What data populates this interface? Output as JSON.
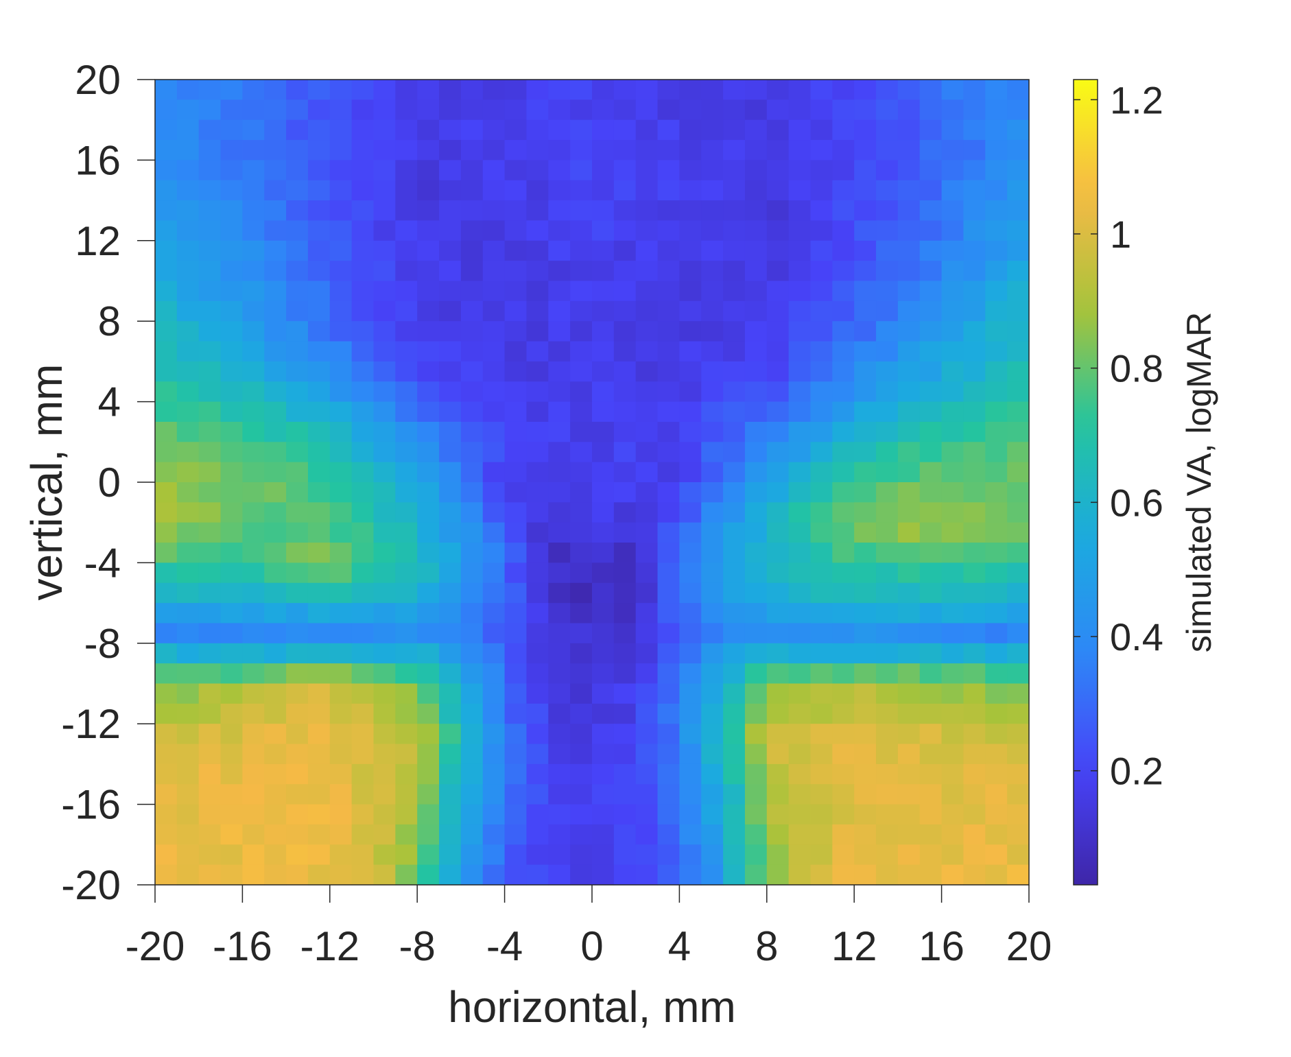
{
  "chart_data": {
    "type": "heatmap",
    "title": "",
    "xlabel": "horizontal, mm",
    "ylabel": "vertical, mm",
    "colorbar_label": "simulated VA, logMAR",
    "colormap": "parula",
    "colormap_stops": [
      "#3e26a8",
      "#4743f8",
      "#2e87f7",
      "#1caadf",
      "#23c4a0",
      "#a7c33a",
      "#f5b946",
      "#f9fb15"
    ],
    "xlim": [
      -20,
      20
    ],
    "ylim": [
      -20,
      20
    ],
    "clim": [
      0.03,
      1.23
    ],
    "x_ticks": [
      "-20",
      "-16",
      "-12",
      "-8",
      "-4",
      "0",
      "4",
      "8",
      "12",
      "16",
      "20"
    ],
    "y_ticks": [
      "20",
      "16",
      "12",
      "8",
      "4",
      "0",
      "-4",
      "-8",
      "-12",
      "-16",
      "-20"
    ],
    "colorbar_ticks": [
      "1.2",
      "1",
      "0.8",
      "0.6",
      "0.4",
      "0.2"
    ],
    "grid_rows": 40,
    "grid_cols": 40,
    "cell_size_mm": 1,
    "y_rows": [
      {
        "y": 20,
        "profile": [
          [
            -20,
            0.38
          ],
          [
            -16,
            0.32
          ],
          [
            -12,
            0.25
          ],
          [
            -8,
            0.16
          ],
          [
            -4,
            0.16
          ],
          [
            0,
            0.2
          ],
          [
            4,
            0.16
          ],
          [
            8,
            0.15
          ],
          [
            12,
            0.22
          ],
          [
            16,
            0.32
          ],
          [
            20,
            0.38
          ]
        ]
      },
      {
        "y": 17,
        "profile": [
          [
            -20,
            0.4
          ],
          [
            -16,
            0.33
          ],
          [
            -12,
            0.25
          ],
          [
            -8,
            0.16
          ],
          [
            -4,
            0.18
          ],
          [
            0,
            0.2
          ],
          [
            4,
            0.18
          ],
          [
            8,
            0.15
          ],
          [
            12,
            0.2
          ],
          [
            16,
            0.3
          ],
          [
            20,
            0.4
          ]
        ]
      },
      {
        "y": 14,
        "profile": [
          [
            -20,
            0.46
          ],
          [
            -16,
            0.36
          ],
          [
            -12,
            0.24
          ],
          [
            -8,
            0.15
          ],
          [
            -4,
            0.16
          ],
          [
            0,
            0.2
          ],
          [
            4,
            0.18
          ],
          [
            8,
            0.14
          ],
          [
            12,
            0.22
          ],
          [
            16,
            0.32
          ],
          [
            20,
            0.48
          ]
        ]
      },
      {
        "y": 11,
        "profile": [
          [
            -20,
            0.5
          ],
          [
            -16,
            0.42
          ],
          [
            -12,
            0.28
          ],
          [
            -8,
            0.17
          ],
          [
            -4,
            0.16
          ],
          [
            0,
            0.18
          ],
          [
            4,
            0.16
          ],
          [
            8,
            0.16
          ],
          [
            12,
            0.24
          ],
          [
            16,
            0.36
          ],
          [
            20,
            0.52
          ]
        ]
      },
      {
        "y": 8,
        "profile": [
          [
            -20,
            0.62
          ],
          [
            -16,
            0.48
          ],
          [
            -12,
            0.3
          ],
          [
            -8,
            0.18
          ],
          [
            -4,
            0.16
          ],
          [
            0,
            0.18
          ],
          [
            4,
            0.16
          ],
          [
            8,
            0.16
          ],
          [
            12,
            0.28
          ],
          [
            16,
            0.46
          ],
          [
            20,
            0.62
          ]
        ]
      },
      {
        "y": 5,
        "profile": [
          [
            -20,
            0.7
          ],
          [
            -16,
            0.6
          ],
          [
            -12,
            0.44
          ],
          [
            -8,
            0.22
          ],
          [
            -4,
            0.16
          ],
          [
            0,
            0.17
          ],
          [
            4,
            0.17
          ],
          [
            8,
            0.2
          ],
          [
            12,
            0.4
          ],
          [
            16,
            0.56
          ],
          [
            20,
            0.68
          ]
        ]
      },
      {
        "y": 2,
        "profile": [
          [
            -20,
            0.8
          ],
          [
            -16,
            0.78
          ],
          [
            -12,
            0.66
          ],
          [
            -8,
            0.4
          ],
          [
            -4,
            0.2
          ],
          [
            0,
            0.18
          ],
          [
            4,
            0.2
          ],
          [
            8,
            0.38
          ],
          [
            12,
            0.62
          ],
          [
            16,
            0.74
          ],
          [
            20,
            0.8
          ]
        ]
      },
      {
        "y": 0,
        "profile": [
          [
            -20,
            0.86
          ],
          [
            -16,
            0.84
          ],
          [
            -12,
            0.74
          ],
          [
            -8,
            0.52
          ],
          [
            -4,
            0.18
          ],
          [
            0,
            0.2
          ],
          [
            4,
            0.18
          ],
          [
            8,
            0.5
          ],
          [
            12,
            0.74
          ],
          [
            16,
            0.82
          ],
          [
            20,
            0.8
          ]
        ]
      },
      {
        "y": -2,
        "profile": [
          [
            -20,
            0.88
          ],
          [
            -16,
            0.8
          ],
          [
            -12,
            0.76
          ],
          [
            -8,
            0.6
          ],
          [
            -6,
            0.44
          ],
          [
            -4,
            0.26
          ],
          [
            -2,
            0.1
          ],
          [
            0,
            0.16
          ],
          [
            2,
            0.12
          ],
          [
            4,
            0.26
          ],
          [
            6,
            0.44
          ],
          [
            8,
            0.6
          ],
          [
            12,
            0.86
          ],
          [
            16,
            0.9
          ],
          [
            20,
            0.8
          ]
        ]
      },
      {
        "y": -4,
        "profile": [
          [
            -20,
            0.76
          ],
          [
            -16,
            0.72
          ],
          [
            -12,
            0.86
          ],
          [
            -8,
            0.66
          ],
          [
            -6,
            0.5
          ],
          [
            -4,
            0.3
          ],
          [
            -2,
            0.1
          ],
          [
            0,
            0.08
          ],
          [
            2,
            0.1
          ],
          [
            4,
            0.3
          ],
          [
            6,
            0.5
          ],
          [
            8,
            0.62
          ],
          [
            12,
            0.72
          ],
          [
            16,
            0.74
          ],
          [
            20,
            0.72
          ]
        ]
      },
      {
        "y": -6,
        "profile": [
          [
            -20,
            0.58
          ],
          [
            -16,
            0.56
          ],
          [
            -12,
            0.6
          ],
          [
            -8,
            0.56
          ],
          [
            -6,
            0.44
          ],
          [
            -4,
            0.3
          ],
          [
            -2,
            0.1
          ],
          [
            0,
            0.08
          ],
          [
            2,
            0.1
          ],
          [
            4,
            0.3
          ],
          [
            6,
            0.44
          ],
          [
            8,
            0.56
          ],
          [
            12,
            0.62
          ],
          [
            16,
            0.6
          ],
          [
            20,
            0.56
          ]
        ]
      },
      {
        "y": -7.5,
        "profile": [
          [
            -20,
            0.38
          ],
          [
            -16,
            0.36
          ],
          [
            -12,
            0.4
          ],
          [
            -8,
            0.42
          ],
          [
            -4,
            0.28
          ],
          [
            -2,
            0.12
          ],
          [
            0,
            0.12
          ],
          [
            2,
            0.14
          ],
          [
            4,
            0.28
          ],
          [
            8,
            0.42
          ],
          [
            12,
            0.42
          ],
          [
            16,
            0.4
          ],
          [
            20,
            0.36
          ]
        ]
      },
      {
        "y": -8.5,
        "profile": [
          [
            -20,
            0.58
          ],
          [
            -16,
            0.56
          ],
          [
            -12,
            0.58
          ],
          [
            -8,
            0.58
          ],
          [
            -6,
            0.46
          ],
          [
            -4,
            0.3
          ],
          [
            -2,
            0.12
          ],
          [
            0,
            0.1
          ],
          [
            2,
            0.14
          ],
          [
            4,
            0.3
          ],
          [
            6,
            0.46
          ],
          [
            8,
            0.58
          ],
          [
            12,
            0.58
          ],
          [
            16,
            0.58
          ],
          [
            20,
            0.58
          ]
        ]
      },
      {
        "y": -10,
        "profile": [
          [
            -20,
            0.82
          ],
          [
            -16,
            0.9
          ],
          [
            -12,
            0.98
          ],
          [
            -8,
            0.82
          ],
          [
            -6,
            0.56
          ],
          [
            -4,
            0.3
          ],
          [
            -2,
            0.16
          ],
          [
            0,
            0.14
          ],
          [
            2,
            0.18
          ],
          [
            4,
            0.34
          ],
          [
            6,
            0.6
          ],
          [
            8,
            0.82
          ],
          [
            12,
            0.92
          ],
          [
            16,
            0.88
          ],
          [
            20,
            0.8
          ]
        ]
      },
      {
        "y": -13,
        "profile": [
          [
            -20,
            1.0
          ],
          [
            -16,
            1.02
          ],
          [
            -12,
            1.04
          ],
          [
            -8,
            0.96
          ],
          [
            -6,
            0.66
          ],
          [
            -4,
            0.34
          ],
          [
            -2,
            0.18
          ],
          [
            0,
            0.16
          ],
          [
            2,
            0.18
          ],
          [
            4,
            0.36
          ],
          [
            6,
            0.66
          ],
          [
            8,
            0.96
          ],
          [
            12,
            1.02
          ],
          [
            16,
            1.0
          ],
          [
            20,
            0.98
          ]
        ]
      },
      {
        "y": -16,
        "profile": [
          [
            -20,
            1.02
          ],
          [
            -16,
            1.04
          ],
          [
            -12,
            1.04
          ],
          [
            -8,
            0.9
          ],
          [
            -7,
            0.7
          ],
          [
            -5,
            0.44
          ],
          [
            -3,
            0.24
          ],
          [
            0,
            0.18
          ],
          [
            3,
            0.24
          ],
          [
            5,
            0.44
          ],
          [
            7,
            0.7
          ],
          [
            8,
            0.92
          ],
          [
            12,
            1.02
          ],
          [
            16,
            1.02
          ],
          [
            20,
            1.02
          ]
        ]
      },
      {
        "y": -20,
        "profile": [
          [
            -20,
            1.04
          ],
          [
            -16,
            1.04
          ],
          [
            -12,
            1.04
          ],
          [
            -9,
            0.92
          ],
          [
            -7,
            0.66
          ],
          [
            -5,
            0.36
          ],
          [
            -3,
            0.2
          ],
          [
            0,
            0.18
          ],
          [
            3,
            0.2
          ],
          [
            5,
            0.36
          ],
          [
            7,
            0.66
          ],
          [
            9,
            0.92
          ],
          [
            12,
            1.04
          ],
          [
            16,
            1.04
          ],
          [
            20,
            1.04
          ]
        ]
      }
    ],
    "grid": false,
    "legend": "colorbar-right"
  }
}
